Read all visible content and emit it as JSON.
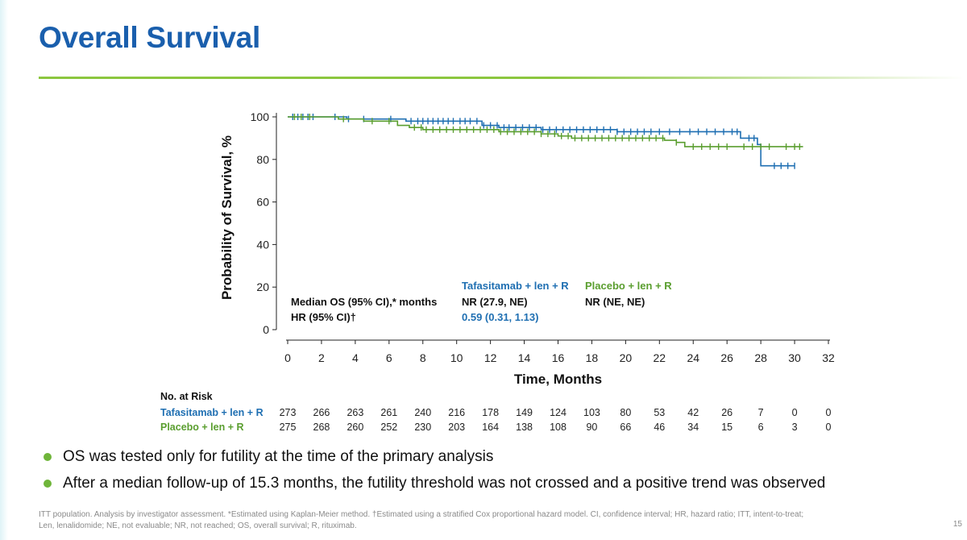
{
  "slide": {
    "title": "Overall Survival",
    "page_number": "15",
    "accent_color": "#8cc63f",
    "title_color": "#1a5fad"
  },
  "bullets": [
    "OS was tested only for futility at the time of the primary analysis",
    "After a median follow-up of 15.3 months, the futility threshold was not crossed and a positive trend was observed"
  ],
  "footnote": {
    "line1": "ITT population. Analysis by investigator assessment. *Estimated using Kaplan-Meier method. †Estimated using a stratified Cox proportional hazard model. CI, confidence interval; HR, hazard ratio; ITT, intent-to-treat;",
    "line2": "Len, lenalidomide; NE, not evaluable; NR, not reached; OS, overall survival; R, rituximab."
  },
  "chart_data": {
    "type": "line",
    "subtype": "kaplan-meier",
    "xlabel": "Time, Months",
    "ylabel": "Probability of Survival, %",
    "xlim": [
      0,
      32
    ],
    "ylim": [
      0,
      100
    ],
    "x_ticks": [
      0,
      2,
      4,
      6,
      8,
      10,
      12,
      14,
      16,
      18,
      20,
      22,
      24,
      26,
      28,
      30,
      32
    ],
    "y_ticks": [
      0,
      20,
      40,
      60,
      80,
      100
    ],
    "series": [
      {
        "name": "Tafasitamab + len + R",
        "color": "#1f6fb2",
        "steps": [
          [
            0,
            100
          ],
          [
            3.5,
            99
          ],
          [
            7,
            98
          ],
          [
            11.5,
            96
          ],
          [
            12.5,
            95
          ],
          [
            15,
            94
          ],
          [
            19.5,
            93
          ],
          [
            26.8,
            90
          ],
          [
            27.8,
            87
          ],
          [
            28,
            77
          ],
          [
            30,
            77
          ]
        ],
        "censor_x": [
          0.3,
          0.6,
          0.9,
          1.2,
          1.5,
          2.8,
          3.6,
          4.5,
          6.1,
          7.3,
          7.7,
          8.0,
          8.3,
          8.6,
          8.9,
          9.2,
          9.5,
          9.8,
          10.2,
          10.5,
          10.8,
          11.2,
          11.6,
          12.0,
          12.4,
          12.8,
          13.1,
          13.5,
          13.9,
          14.3,
          14.7,
          15.1,
          15.5,
          15.9,
          16.3,
          16.7,
          17.1,
          17.5,
          17.9,
          18.3,
          18.7,
          19.1,
          19.5,
          19.9,
          20.3,
          20.7,
          21.1,
          21.5,
          22.0,
          22.6,
          23.2,
          23.8,
          24.3,
          24.8,
          25.3,
          25.8,
          26.3,
          26.6,
          27.3,
          27.6,
          28.8,
          29.2,
          29.6,
          30.0
        ]
      },
      {
        "name": "Placebo + len + R",
        "color": "#5a9e2f",
        "steps": [
          [
            0,
            100
          ],
          [
            3,
            99
          ],
          [
            4.5,
            98
          ],
          [
            6.5,
            96
          ],
          [
            7.2,
            95
          ],
          [
            8,
            94
          ],
          [
            12.5,
            93
          ],
          [
            15,
            92
          ],
          [
            16,
            91
          ],
          [
            16.8,
            90
          ],
          [
            22.3,
            89
          ],
          [
            23,
            88
          ],
          [
            23.5,
            86
          ],
          [
            30.5,
            86
          ]
        ],
        "censor_x": [
          0.4,
          0.8,
          1.3,
          3.3,
          5.0,
          6.0,
          7.5,
          7.9,
          8.2,
          8.6,
          9.0,
          9.4,
          9.8,
          10.2,
          10.6,
          11.0,
          11.4,
          11.8,
          12.2,
          12.6,
          13.0,
          13.4,
          13.8,
          14.2,
          14.6,
          15.0,
          15.4,
          15.8,
          16.2,
          16.6,
          17.0,
          17.4,
          17.8,
          18.2,
          18.6,
          19.0,
          19.4,
          19.8,
          20.2,
          20.6,
          21.0,
          21.4,
          21.8,
          22.2,
          23.0,
          24.0,
          24.5,
          25.0,
          25.5,
          26.0,
          27.0,
          27.5,
          28.0,
          28.5,
          29.5,
          30.0,
          30.3
        ]
      }
    ],
    "stats_table": {
      "row_labels": [
        "Median OS (95% CI),* months",
        "HR (95% CI)†"
      ],
      "columns": [
        {
          "header": "Tafasitamab + len + R",
          "values": [
            "NR (27.9, NE)",
            "0.59 (0.31, 1.13)"
          ]
        },
        {
          "header": "Placebo + len + R",
          "values": [
            "NR (NE, NE)",
            ""
          ]
        }
      ]
    },
    "risk_table": {
      "title": "No. at Risk",
      "times": [
        0,
        2,
        4,
        6,
        8,
        10,
        12,
        14,
        16,
        18,
        20,
        22,
        24,
        26,
        28,
        30,
        32
      ],
      "rows": [
        {
          "label": "Tafasitamab + len + R",
          "values": [
            273,
            266,
            263,
            261,
            240,
            216,
            178,
            149,
            124,
            103,
            80,
            53,
            42,
            26,
            7,
            0,
            0
          ]
        },
        {
          "label": "Placebo + len + R",
          "values": [
            275,
            268,
            260,
            252,
            230,
            203,
            164,
            138,
            108,
            90,
            66,
            46,
            34,
            15,
            6,
            3,
            0
          ]
        }
      ]
    }
  }
}
